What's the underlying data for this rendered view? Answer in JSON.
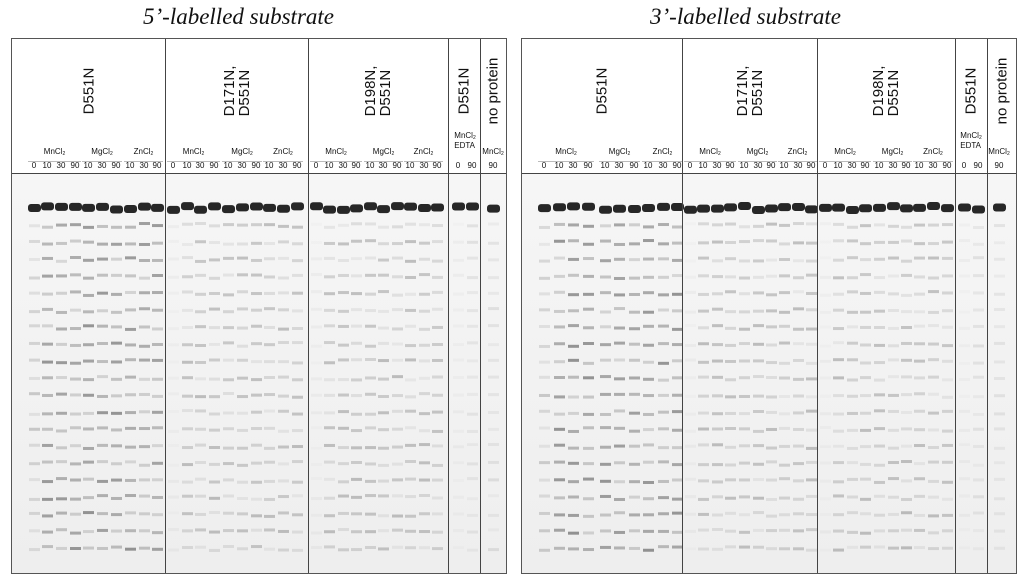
{
  "figure": {
    "left_title": "5’-labelled substrate",
    "right_title": "3’-labelled substrate"
  },
  "panels": [
    {
      "id": "left",
      "groups": [
        {
          "label_lines": [
            "D551N"
          ],
          "conditions": [
            {
              "salt": "MnCl",
              "sub": "2",
              "times": [
                "0",
                "10",
                "30",
                "90"
              ]
            },
            {
              "salt": "MgCl",
              "sub": "2",
              "times": [
                "10",
                "30",
                "90"
              ]
            },
            {
              "salt": "ZnCl",
              "sub": "2",
              "times": [
                "10",
                "30",
                "90"
              ]
            }
          ]
        },
        {
          "label_lines": [
            "D171N,",
            "D551N"
          ],
          "conditions": [
            {
              "salt": "MnCl",
              "sub": "2",
              "times": [
                "0",
                "10",
                "30",
                "90"
              ]
            },
            {
              "salt": "MgCl",
              "sub": "2",
              "times": [
                "10",
                "30",
                "90"
              ]
            },
            {
              "salt": "ZnCl",
              "sub": "2",
              "times": [
                "10",
                "30",
                "90"
              ]
            }
          ]
        },
        {
          "label_lines": [
            "D198N,",
            "D551N"
          ],
          "conditions": [
            {
              "salt": "MnCl",
              "sub": "2",
              "times": [
                "0",
                "10",
                "30",
                "90"
              ]
            },
            {
              "salt": "MgCl",
              "sub": "2",
              "times": [
                "10",
                "30",
                "90"
              ]
            },
            {
              "salt": "ZnCl",
              "sub": "2",
              "times": [
                "10",
                "30",
                "90"
              ]
            }
          ]
        },
        {
          "label_lines": [
            "D551N"
          ],
          "conditions": [
            {
              "salt": "MnCl",
              "sub": "2",
              "extra": "EDTA",
              "times": [
                "0",
                "90"
              ]
            }
          ]
        },
        {
          "label_lines": [
            "no protein"
          ],
          "conditions": [
            {
              "salt": "MnCl",
              "sub": "2",
              "times": [
                "90"
              ]
            }
          ]
        }
      ]
    },
    {
      "id": "right",
      "groups": [
        {
          "label_lines": [
            "D551N"
          ],
          "conditions": [
            {
              "salt": "MnCl",
              "sub": "2",
              "times": [
                "0",
                "10",
                "30",
                "90"
              ]
            },
            {
              "salt": "MgCl",
              "sub": "2",
              "times": [
                "10",
                "30",
                "90"
              ]
            },
            {
              "salt": "ZnCl",
              "sub": "2",
              "times": [
                "10",
                "30",
                "90"
              ]
            }
          ]
        },
        {
          "label_lines": [
            "D171N,",
            "D551N"
          ],
          "conditions": [
            {
              "salt": "MnCl",
              "sub": "2",
              "times": [
                "0",
                "10",
                "30",
                "90"
              ]
            },
            {
              "salt": "MgCl",
              "sub": "2",
              "times": [
                "10",
                "30",
                "90"
              ]
            },
            {
              "salt": "ZnCl",
              "sub": "2",
              "times": [
                "10",
                "30",
                "90"
              ]
            }
          ]
        },
        {
          "label_lines": [
            "D198N,",
            "D551N"
          ],
          "conditions": [
            {
              "salt": "MnCl",
              "sub": "2",
              "times": [
                "0",
                "10",
                "30",
                "90"
              ]
            },
            {
              "salt": "MgCl",
              "sub": "2",
              "times": [
                "10",
                "30",
                "90"
              ]
            },
            {
              "salt": "ZnCl",
              "sub": "2",
              "times": [
                "10",
                "30",
                "90"
              ]
            }
          ]
        },
        {
          "label_lines": [
            "D551N"
          ],
          "conditions": [
            {
              "salt": "MnCl",
              "sub": "2",
              "extra": "EDTA",
              "times": [
                "0",
                "90"
              ]
            }
          ]
        },
        {
          "label_lines": [
            "no protein"
          ],
          "conditions": [
            {
              "salt": "MnCl",
              "sub": "2",
              "times": [
                "90"
              ]
            }
          ]
        }
      ]
    }
  ]
}
